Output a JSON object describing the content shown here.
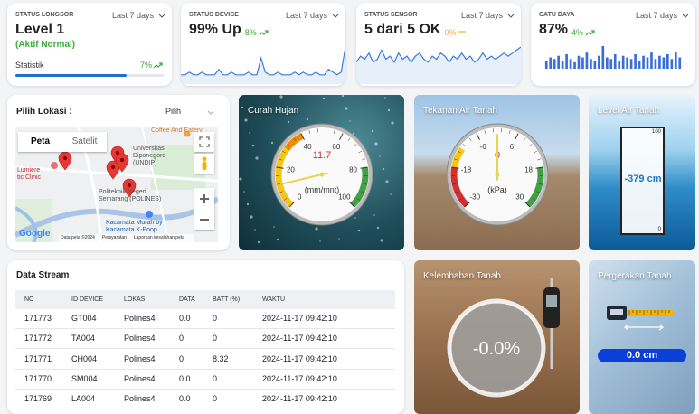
{
  "summary_cards": [
    {
      "label": "STATUS LONGSOR",
      "period": "Last 7 days",
      "value": "Level 1",
      "status": "(Aktif Normal)",
      "footer": "Statistik",
      "change": "7%",
      "progress": 75,
      "color": "#3caa3c"
    },
    {
      "label": "STATUS DEVICE",
      "period": "Last 7 days",
      "value": "99% Up",
      "change": "8%",
      "chart": "line",
      "color": "#3caa3c",
      "trend": [
        2,
        2,
        3,
        2,
        2,
        3,
        2,
        2,
        2,
        4,
        2,
        2,
        3,
        2,
        2,
        2,
        3,
        2,
        2,
        8,
        3,
        2,
        2,
        3,
        2,
        2,
        2,
        3,
        2,
        3,
        2,
        2,
        3,
        2,
        2,
        4,
        3,
        2,
        3,
        12
      ]
    },
    {
      "label": "STATUS SENSOR",
      "period": "Last 7 days",
      "value": "5 dari 5 OK",
      "change": "0%",
      "chart": "line",
      "color": "#f0ad4e",
      "trend": [
        6,
        8,
        7,
        9,
        6,
        7,
        10,
        7,
        8,
        6,
        9,
        7,
        8,
        6,
        8,
        9,
        7,
        6,
        8,
        7,
        9,
        8,
        6,
        8,
        7,
        9,
        7,
        8,
        6,
        7,
        9,
        7,
        8,
        7,
        8,
        9,
        8,
        9,
        10,
        11
      ]
    },
    {
      "label": "CATU DAYA",
      "period": "Last 7 days",
      "value": "87%",
      "change": "4%",
      "chart": "bar",
      "color": "#3caa3c",
      "trend": [
        5,
        7,
        6,
        8,
        5,
        9,
        6,
        4,
        8,
        7,
        10,
        6,
        5,
        8,
        14,
        7,
        6,
        9,
        5,
        8,
        7,
        6,
        9,
        5,
        8,
        7,
        10,
        6,
        8,
        7,
        9,
        6,
        10,
        7
      ]
    }
  ],
  "location": {
    "title": "Pilih Lokasi :",
    "select": "Pilih",
    "map_tabs": [
      "Peta",
      "Satelit"
    ],
    "places": [
      [
        "Coffee And Eatery"
      ],
      [
        "Universitas",
        "Diponegoro",
        "(UNDIP)"
      ],
      [
        "Lumiere",
        "tic Clinic"
      ],
      [
        "Politeknik Negeri",
        "Semarang (POLINES)"
      ],
      [
        "Kacamata Murah by",
        "Kacamata K-Poop"
      ]
    ],
    "attribution": [
      "Google",
      "Data peta ©2024",
      "Persyaratan",
      "Laporkan kesalahan peta"
    ]
  },
  "gauges": [
    {
      "title": "Curah Hujan",
      "value": 11.7,
      "unit": "(mm/mnt)",
      "ticks": [
        0,
        20,
        40,
        60,
        80,
        100
      ],
      "bands": [
        {
          "from": 0,
          "to": 30,
          "color": "#f5c518"
        },
        {
          "from": 30,
          "to": 40,
          "color": "#f08c00"
        },
        {
          "from": 80,
          "to": 100,
          "color": "#43a047"
        }
      ]
    },
    {
      "title": "Tekanan Air Tanah",
      "value": 0,
      "unit": "(kPa)",
      "ticks": [
        -30,
        -18,
        -6,
        6,
        18,
        30
      ],
      "bands": [
        {
          "from": -30,
          "to": -18,
          "color": "#d32f2f"
        },
        {
          "from": -18,
          "to": -12,
          "color": "#f5c518"
        },
        {
          "from": 18,
          "to": 30,
          "color": "#43a047"
        }
      ]
    }
  ],
  "level_air_tanah": {
    "title": "Level Air Tanah",
    "scale_top": 100,
    "scale_bottom": 0,
    "value": "-379 cm"
  },
  "kelembaban_tanah": {
    "title": "Kelembaban Tanah",
    "value": "-0.0%"
  },
  "pergerakan_tanah": {
    "title": "Pergerakan Tanah",
    "value": "0.0 cm"
  },
  "table": {
    "title": "Data Stream",
    "columns": [
      "NO",
      "ID DEVICE",
      "LOKASI",
      "DATA",
      "BATT (%)",
      "WAKTU"
    ],
    "rows": [
      [
        "171773",
        "GT004",
        "Polines4",
        "0.0",
        "0",
        "2024-11-17 09:42:10"
      ],
      [
        "171772",
        "TA004",
        "Polines4",
        "0",
        "0",
        "2024-11-17 09:42:10"
      ],
      [
        "171771",
        "CH004",
        "Polines4",
        "0",
        "8.32",
        "2024-11-17 09:42:10"
      ],
      [
        "171770",
        "SM004",
        "Polines4",
        "0.0",
        "0",
        "2024-11-17 09:42:10"
      ],
      [
        "171769",
        "LA004",
        "Polines4",
        "0.0",
        "0",
        "2024-11-17 09:42:10"
      ]
    ]
  }
}
